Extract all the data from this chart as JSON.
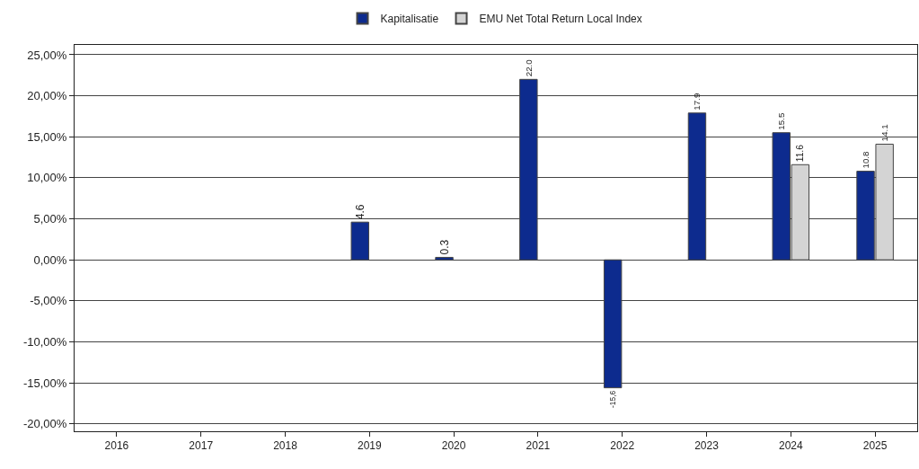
{
  "chart_data": {
    "type": "bar",
    "categories": [
      "2016",
      "2017",
      "2018",
      "2019",
      "2020",
      "2021",
      "2022",
      "2023",
      "2024",
      "2025"
    ],
    "series": [
      {
        "name": "Kapitalisatie",
        "color": "#0d2b8e",
        "values": [
          null,
          null,
          null,
          4.6,
          0.3,
          22.0,
          -15.6,
          17.9,
          15.5,
          10.8
        ],
        "value_labels": [
          null,
          null,
          null,
          "4.6",
          "0.3",
          "22.0",
          "-15,6",
          "17.9",
          "15.5",
          "10.8"
        ]
      },
      {
        "name": "EMU Net Total Return Local Index",
        "color": "#d4d4d4",
        "values": [
          null,
          null,
          null,
          null,
          null,
          null,
          null,
          null,
          11.6,
          14.1
        ],
        "value_labels": [
          null,
          null,
          null,
          null,
          null,
          null,
          null,
          null,
          "11.6",
          "14.1"
        ]
      }
    ],
    "ylim": [
      -20.9,
      26.2
    ],
    "yticks": [
      {
        "value": -20,
        "label": "-20,00%"
      },
      {
        "value": -15,
        "label": "-15,00%"
      },
      {
        "value": -10,
        "label": "-10,00%"
      },
      {
        "value": -5,
        "label": "-5,00%"
      },
      {
        "value": 0,
        "label": "0,00%"
      },
      {
        "value": 5,
        "label": "5,00%"
      },
      {
        "value": 10,
        "label": "10,00%"
      },
      {
        "value": 15,
        "label": "15,00%"
      },
      {
        "value": 20,
        "label": "20,00%"
      },
      {
        "value": 25,
        "label": "25,00%"
      }
    ],
    "grid": "y",
    "legend": "top"
  }
}
